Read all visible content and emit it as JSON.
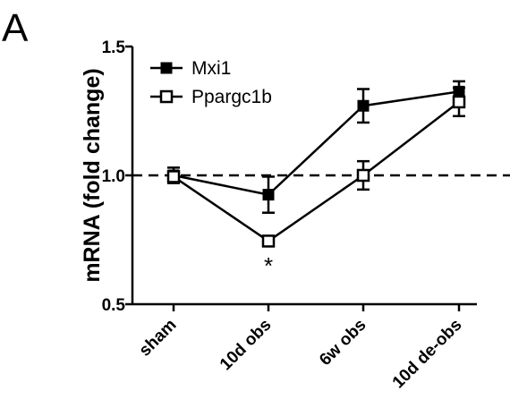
{
  "panel_label": "A",
  "chart_data": {
    "type": "line",
    "title": "",
    "xlabel": "",
    "ylabel": "mRNA (fold change)",
    "categories": [
      "sham",
      "10d obs",
      "6w obs",
      "10d de-obs"
    ],
    "ylim": [
      0.5,
      1.5
    ],
    "yticks": [
      "0.5",
      "1.0",
      "1.5"
    ],
    "reference_line": 1.0,
    "legend_position": "top-left",
    "series": [
      {
        "name": "Mxi1",
        "marker": "filled-square",
        "values": [
          1.0,
          0.925,
          1.27,
          1.325
        ],
        "errors": [
          0.03,
          0.07,
          0.065,
          0.04
        ]
      },
      {
        "name": "Ppargc1b",
        "marker": "open-square",
        "values": [
          0.995,
          0.745,
          1.0,
          1.285
        ],
        "errors": [
          0.02,
          0.015,
          0.055,
          0.055
        ]
      }
    ],
    "annotations": [
      {
        "category": "10d obs",
        "text": "*"
      }
    ]
  }
}
